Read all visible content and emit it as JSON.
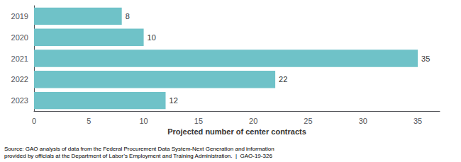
{
  "chart_data": {
    "type": "bar",
    "orientation": "horizontal",
    "categories": [
      "2019",
      "2020",
      "2021",
      "2022",
      "2023"
    ],
    "values": [
      8,
      10,
      35,
      22,
      12
    ],
    "color": "#6fc2c8",
    "xlabel": "Projected number of center contracts",
    "xlim": [
      0,
      37
    ],
    "xticks": [
      0,
      5,
      10,
      15,
      20,
      25,
      30,
      35
    ],
    "grid": false,
    "data_labels": true,
    "annotations": [
      "Source: GAO analysis of data from the Federal Procurement Data System-Next Generation and information\nprovided by officials at the Department of Labor’s Employment and Training Administration.  |  GAO-19-326"
    ]
  }
}
